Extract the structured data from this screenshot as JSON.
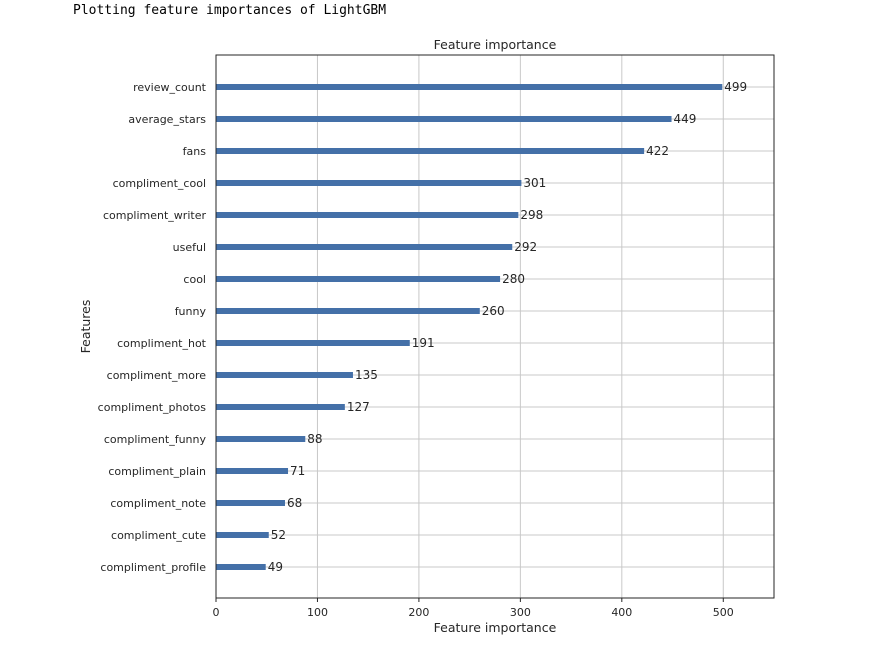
{
  "notebook_heading": "Plotting feature importances of LightGBM",
  "chart_data": {
    "type": "bar",
    "orientation": "horizontal",
    "title": "Feature importance",
    "xlabel": "Feature importance",
    "ylabel": "Features",
    "xlim": [
      0,
      550
    ],
    "xticks": [
      0,
      100,
      200,
      300,
      400,
      500
    ],
    "grid": true,
    "bar_color": "#4470a8",
    "categories": [
      "review_count",
      "average_stars",
      "fans",
      "compliment_cool",
      "compliment_writer",
      "useful",
      "cool",
      "funny",
      "compliment_hot",
      "compliment_more",
      "compliment_photos",
      "compliment_funny",
      "compliment_plain",
      "compliment_note",
      "compliment_cute",
      "compliment_profile"
    ],
    "values": [
      499,
      449,
      422,
      301,
      298,
      292,
      280,
      260,
      191,
      135,
      127,
      88,
      71,
      68,
      52,
      49
    ]
  }
}
